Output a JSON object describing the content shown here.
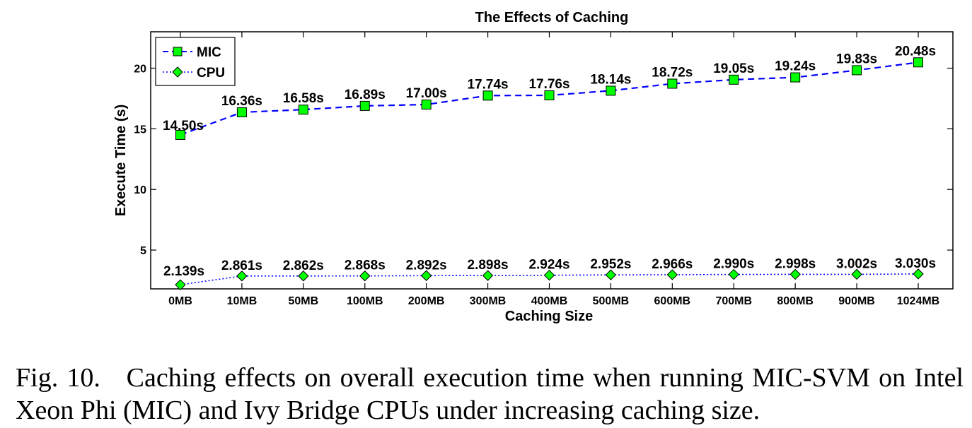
{
  "chart_data": {
    "type": "line",
    "title": "The Effects of Caching",
    "xlabel": "Caching Size",
    "ylabel": "Execute Time (s)",
    "categories": [
      "0MB",
      "10MB",
      "50MB",
      "100MB",
      "200MB",
      "300MB",
      "400MB",
      "500MB",
      "600MB",
      "700MB",
      "800MB",
      "900MB",
      "1024MB"
    ],
    "ylim": [
      1.8,
      23
    ],
    "yticks": [
      5,
      10,
      15,
      20
    ],
    "grid": false,
    "legend_position": "top-left",
    "series": [
      {
        "name": "MIC",
        "color": "#0000ff",
        "marker": "square",
        "marker_color": "#00ff00",
        "line_style": "dashed",
        "values": [
          14.5,
          16.36,
          16.58,
          16.89,
          17.0,
          17.74,
          17.76,
          18.14,
          18.72,
          19.05,
          19.24,
          19.83,
          20.48
        ],
        "labels": [
          "14.50s",
          "16.36s",
          "16.58s",
          "16.89s",
          "17.00s",
          "17.74s",
          "17.76s",
          "18.14s",
          "18.72s",
          "19.05s",
          "19.24s",
          "19.83s",
          "20.48s"
        ]
      },
      {
        "name": "CPU",
        "color": "#0000ff",
        "marker": "diamond",
        "marker_color": "#00ff00",
        "line_style": "dotted",
        "values": [
          2.139,
          2.861,
          2.862,
          2.868,
          2.892,
          2.898,
          2.924,
          2.952,
          2.966,
          2.99,
          2.998,
          3.002,
          3.03
        ],
        "labels": [
          "2.139s",
          "2.861s",
          "2.862s",
          "2.868s",
          "2.892s",
          "2.898s",
          "2.924s",
          "2.952s",
          "2.966s",
          "2.990s",
          "2.998s",
          "3.002s",
          "3.030s"
        ]
      }
    ]
  },
  "caption": {
    "label": "Fig. 10.",
    "text": "Caching effects on overall execution time when running MIC-SVM on Intel Xeon Phi (MIC) and Ivy Bridge CPUs under increasing caching size."
  }
}
